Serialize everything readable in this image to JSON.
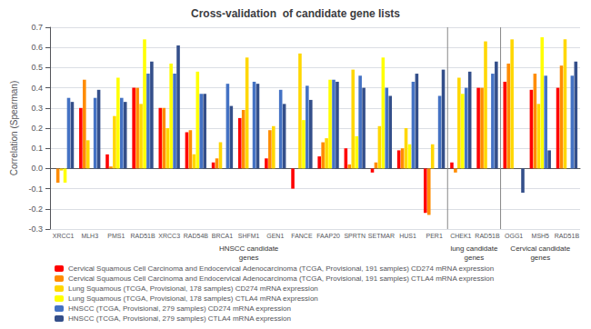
{
  "chart_data": {
    "type": "bar",
    "title": "Cross-validation  of candidate gene lists",
    "ylabel": "Correlation (Spearman)",
    "categories": [
      "XRCC1",
      "MLH3",
      "PMS1",
      "RAD51B",
      "XRCC3",
      "RAD54B",
      "BRCA1",
      "SHFM1",
      "GEN1",
      "FANCE",
      "FAAP20",
      "SPRTN",
      "SETMAR",
      "HUS1",
      "PER1",
      "CHEK1",
      "RAD51B",
      "OGG1",
      "MSH5",
      "RAD51B"
    ],
    "series": [
      {
        "name": "Cervical Squamous Cell Carcinoma and Endocervical Adenocarcinoma (TCGA, Provisional, 191 samples) CD274 mRNA expression",
        "color": "#FF0000",
        "values": [
          0.0,
          0.3,
          0.07,
          0.4,
          0.3,
          0.18,
          0.03,
          0.25,
          0.05,
          -0.1,
          0.06,
          0.1,
          -0.02,
          0.09,
          -0.22,
          0.03,
          0.4,
          0.43,
          0.39,
          0.4
        ]
      },
      {
        "name": "Cervical Squamous Cell Carcinoma and Endocervical Adenocarcinoma (TCGA, Provisional, 191 samples) CTLA4 mRNA expression",
        "color": "#FF8C00",
        "values": [
          -0.07,
          0.44,
          0.01,
          0.4,
          0.3,
          0.19,
          0.05,
          0.29,
          0.19,
          0.0,
          0.13,
          0.02,
          0.03,
          0.1,
          -0.23,
          -0.02,
          0.4,
          0.52,
          0.47,
          0.51
        ]
      },
      {
        "name": "Lung Squamous (TCGA, Provisional, 178 samples) CD274 mRNA expression",
        "color": "#FFD700",
        "values": [
          -0.01,
          0.14,
          0.26,
          0.32,
          0.2,
          0.07,
          0.13,
          0.55,
          0.21,
          0.57,
          0.15,
          0.49,
          0.21,
          0.2,
          0.12,
          0.45,
          0.63,
          0.64,
          0.32,
          0.64
        ]
      },
      {
        "name": "Lung Squamous (TCGA, Provisional, 178 samples) CTLA4 mRNA expression",
        "color": "#FFFF00",
        "values": [
          -0.07,
          0.0,
          0.45,
          0.64,
          0.52,
          0.48,
          0.0,
          0.0,
          0.0,
          0.24,
          0.44,
          0.16,
          0.55,
          0.12,
          0.0,
          0.37,
          0.0,
          0.0,
          0.65,
          0.0
        ]
      },
      {
        "name": "HNSCC (TCGA, Provisional, 279 samples) CD274 mRNA expression",
        "color": "#4472C4",
        "values": [
          0.35,
          0.35,
          0.35,
          0.47,
          0.47,
          0.37,
          0.42,
          0.43,
          0.39,
          0.41,
          0.44,
          0.46,
          0.4,
          0.43,
          0.36,
          0.4,
          0.47,
          0.0,
          0.46,
          0.46
        ]
      },
      {
        "name": "HNSCC (TCGA, Provisional, 279 samples) CTLA4 mRNA expression",
        "color": "#344F8A",
        "values": [
          0.33,
          0.39,
          0.33,
          0.53,
          0.61,
          0.37,
          0.31,
          0.42,
          0.32,
          0.34,
          0.43,
          0.4,
          0.36,
          0.47,
          0.49,
          0.48,
          0.53,
          -0.12,
          0.09,
          0.53
        ]
      }
    ],
    "annotations": [
      "HNSCC candidate\ngenes",
      "lung candidate\ngenes",
      "Cervical candidate\ngenes"
    ],
    "ylim": [
      -0.3,
      0.7
    ],
    "yticks": [
      -0.3,
      -0.2,
      -0.1,
      {
        "value": 0,
        "label": "0.0"
      },
      0.1,
      0.2,
      0.3,
      0.4,
      0.5,
      0.6,
      0.7
    ],
    "grid": true
  }
}
